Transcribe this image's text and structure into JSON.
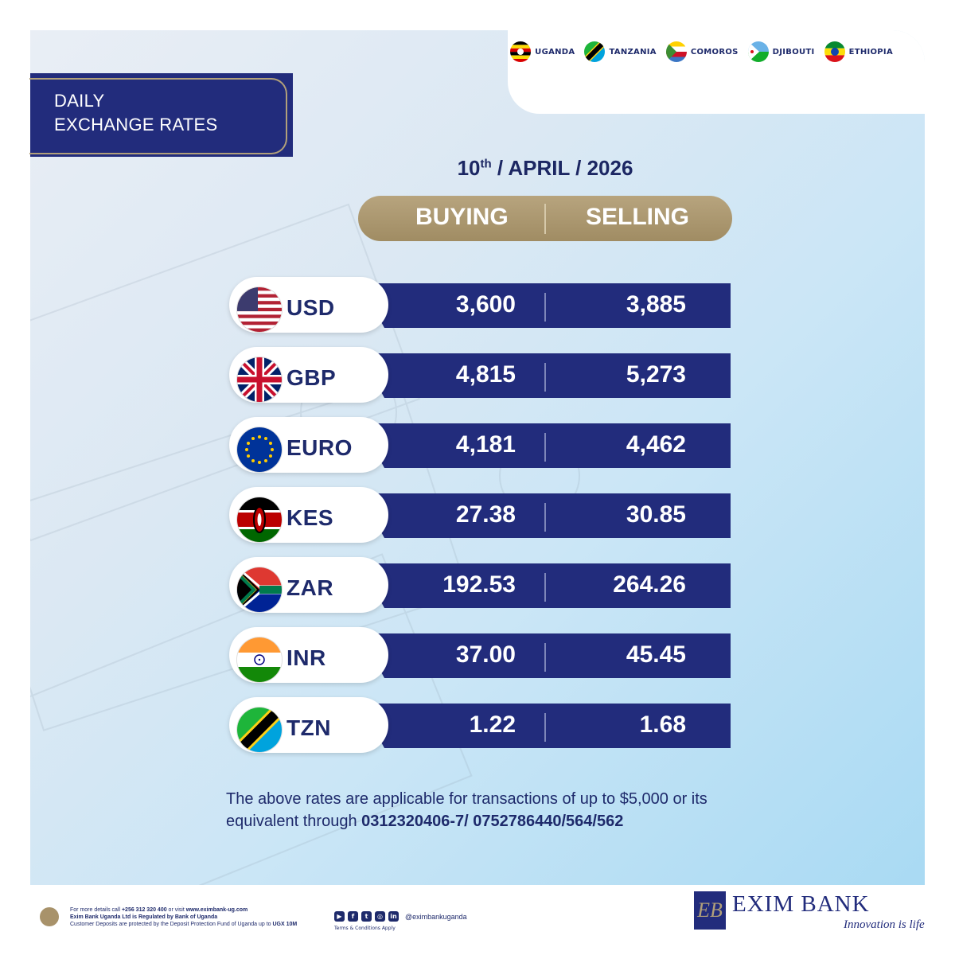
{
  "countries": [
    {
      "name": "UGANDA",
      "flag": "uganda-flag-icon"
    },
    {
      "name": "TANZANIA",
      "flag": "tanzania-flag-icon"
    },
    {
      "name": "COMOROS",
      "flag": "comoros-flag-icon"
    },
    {
      "name": "DJIBOUTI",
      "flag": "djibouti-flag-icon"
    },
    {
      "name": "ETHIOPIA",
      "flag": "ethiopia-flag-icon"
    }
  ],
  "title": {
    "line1": "DAILY",
    "line2": "EXCHANGE RATES"
  },
  "date": {
    "day": "10",
    "suffix": "th",
    "rest": " / APRIL / 2026"
  },
  "headers": {
    "buying": "BUYING",
    "selling": "SELLING"
  },
  "rates": [
    {
      "code": "USD",
      "buying": "3,600",
      "selling": "3,885",
      "flag": "usa-flag-icon"
    },
    {
      "code": "GBP",
      "buying": "4,815",
      "selling": "5,273",
      "flag": "uk-flag-icon"
    },
    {
      "code": "EURO",
      "buying": "4,181",
      "selling": "4,462",
      "flag": "eu-flag-icon"
    },
    {
      "code": "KES",
      "buying": "27.38",
      "selling": "30.85",
      "flag": "kenya-flag-icon"
    },
    {
      "code": "ZAR",
      "buying": "192.53",
      "selling": "264.26",
      "flag": "south-africa-flag-icon"
    },
    {
      "code": "INR",
      "buying": "37.00",
      "selling": "45.45",
      "flag": "india-flag-icon"
    },
    {
      "code": "TZN",
      "buying": "1.22",
      "selling": "1.68",
      "flag": "tanzania-flag-icon"
    }
  ],
  "note": {
    "text": "The above rates are applicable for transactions of up to $5,000 or its equivalent through ",
    "phones": "0312320406-7/ 0752786440/564/562"
  },
  "footer": {
    "line1_prefix": "For more details call ",
    "line1_phone": "+256 312 320 400",
    "line1_mid": " or visit ",
    "line1_url": "www.eximbank-ug.com",
    "line2": "Exim Bank Uganda Ltd is Regulated by Bank of Uganda",
    "line3_prefix": "Customer Deposits are protected by the Deposit Protection Fund of Uganda up to ",
    "line3_amount": "UGX 10M",
    "handle": "@eximbankuganda",
    "terms": "Terms & Conditions Apply"
  },
  "brand": {
    "name": "EXIM BANK",
    "tagline": "Innovation is life",
    "monogram": "EB"
  },
  "colors": {
    "navy": "#222c7c",
    "gold": "#b1a07a",
    "text": "#1e2a6b"
  }
}
